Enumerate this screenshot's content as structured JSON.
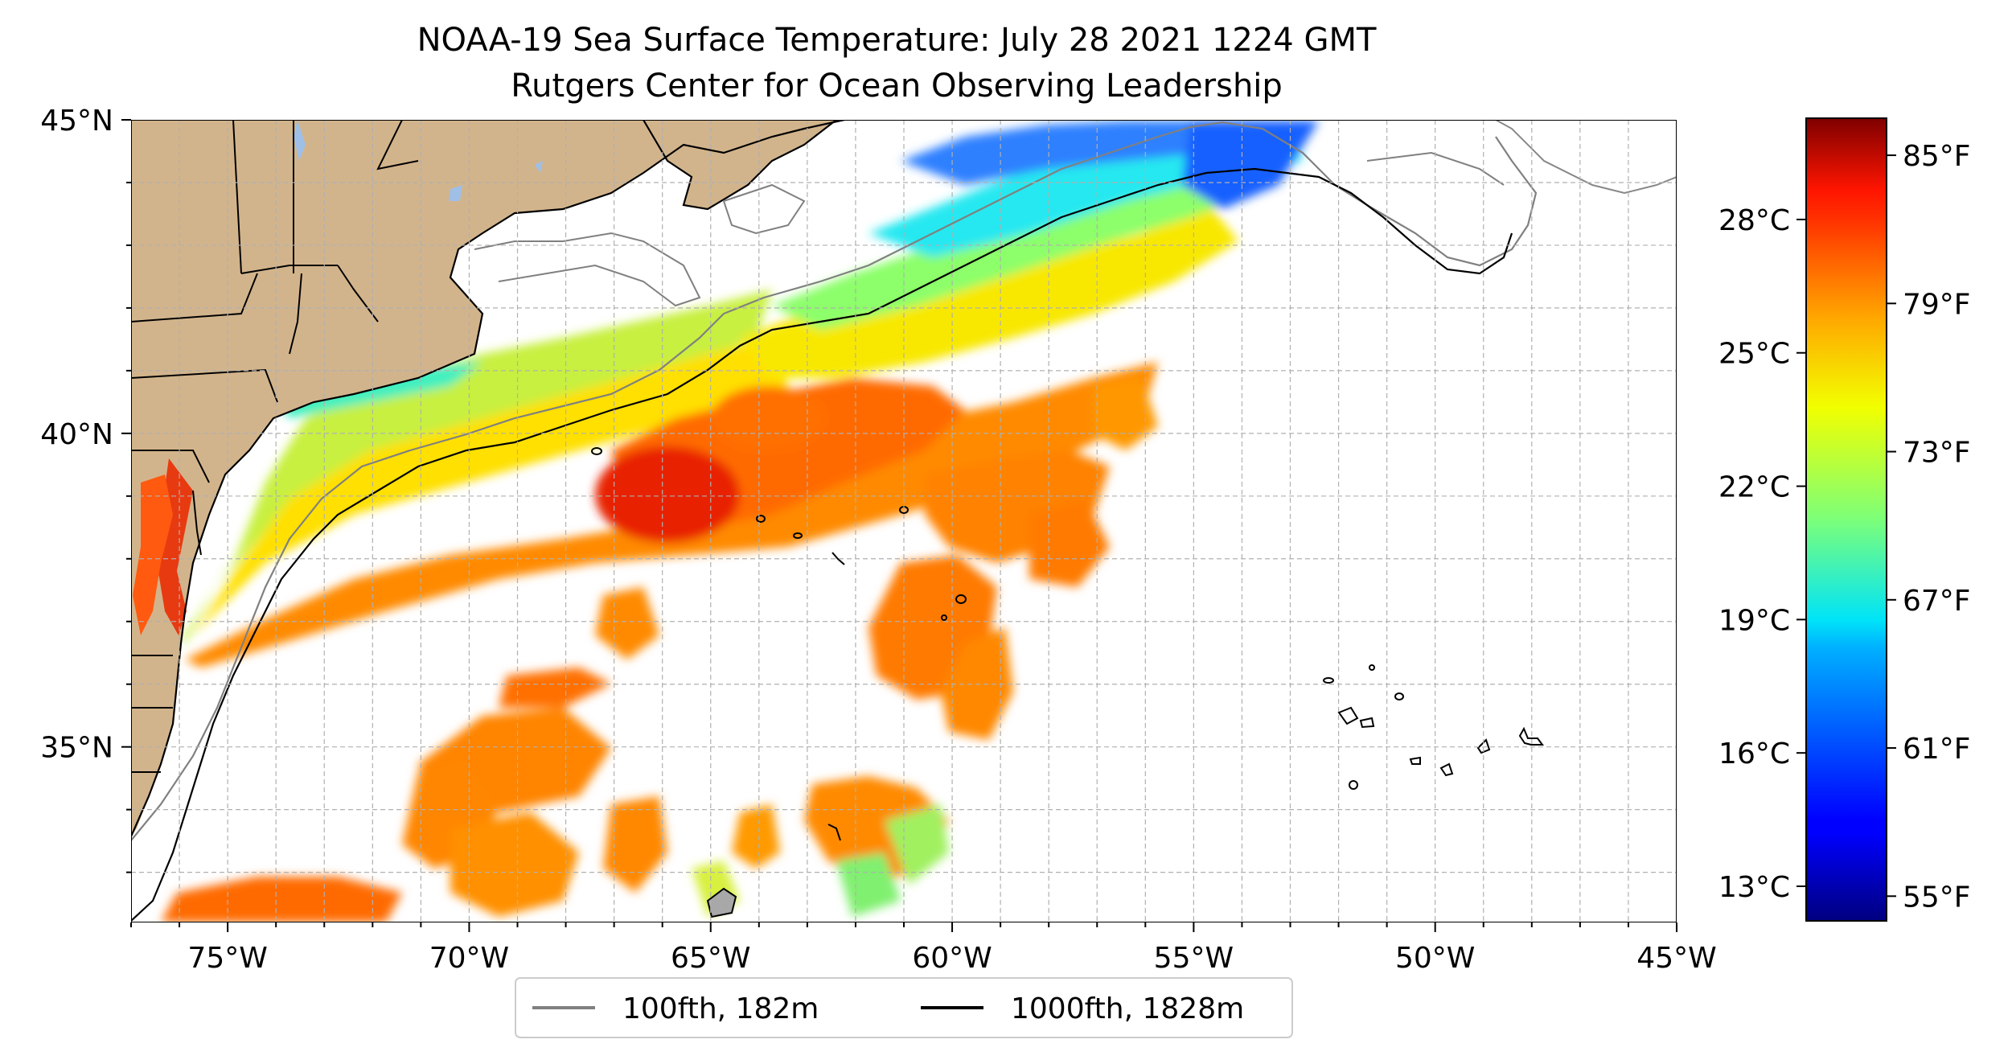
{
  "figure": {
    "title_line1": "NOAA-19 Sea Surface Temperature: July 28 2021 1224 GMT",
    "title_line2": "Rutgers Center for Ocean Observing Leadership"
  },
  "map": {
    "lon_range": [
      -77,
      -45
    ],
    "lat_range": [
      32.2,
      45
    ],
    "land_color": "#d2b48c",
    "lake_color": "#9fbfe6",
    "grid": "on, dashed gray, every 1 degree",
    "x_ticks": [
      {
        "lon": -75,
        "label": "75°W"
      },
      {
        "lon": -70,
        "label": "70°W"
      },
      {
        "lon": -65,
        "label": "65°W"
      },
      {
        "lon": -60,
        "label": "60°W"
      },
      {
        "lon": -55,
        "label": "55°W"
      },
      {
        "lon": -50,
        "label": "50°W"
      },
      {
        "lon": -45,
        "label": "45°W"
      }
    ],
    "y_ticks": [
      {
        "lat": 45,
        "label": "45°N"
      },
      {
        "lat": 40,
        "label": "40°N"
      },
      {
        "lat": 35,
        "label": "35°N"
      }
    ]
  },
  "legend": {
    "placement": "bottom-center",
    "items": [
      {
        "label": "100fth, 182m",
        "color": "#808080"
      },
      {
        "label": "1000fth, 1828m",
        "color": "#000000"
      }
    ]
  },
  "colorbar": {
    "colormap": "jet",
    "range_f": [
      54,
      86.5
    ],
    "left_ticks": [
      {
        "value_c": 28,
        "label": "28°C"
      },
      {
        "value_c": 25,
        "label": "25°C"
      },
      {
        "value_c": 22,
        "label": "22°C"
      },
      {
        "value_c": 19,
        "label": "19°C"
      },
      {
        "value_c": 16,
        "label": "16°C"
      },
      {
        "value_c": 13,
        "label": "13°C"
      }
    ],
    "right_ticks": [
      {
        "value_f": 85,
        "label": "85°F"
      },
      {
        "value_f": 79,
        "label": "79°F"
      },
      {
        "value_f": 73,
        "label": "73°F"
      },
      {
        "value_f": 67,
        "label": "67°F"
      },
      {
        "value_f": 61,
        "label": "61°F"
      },
      {
        "value_f": 55,
        "label": "55°F"
      }
    ]
  }
}
